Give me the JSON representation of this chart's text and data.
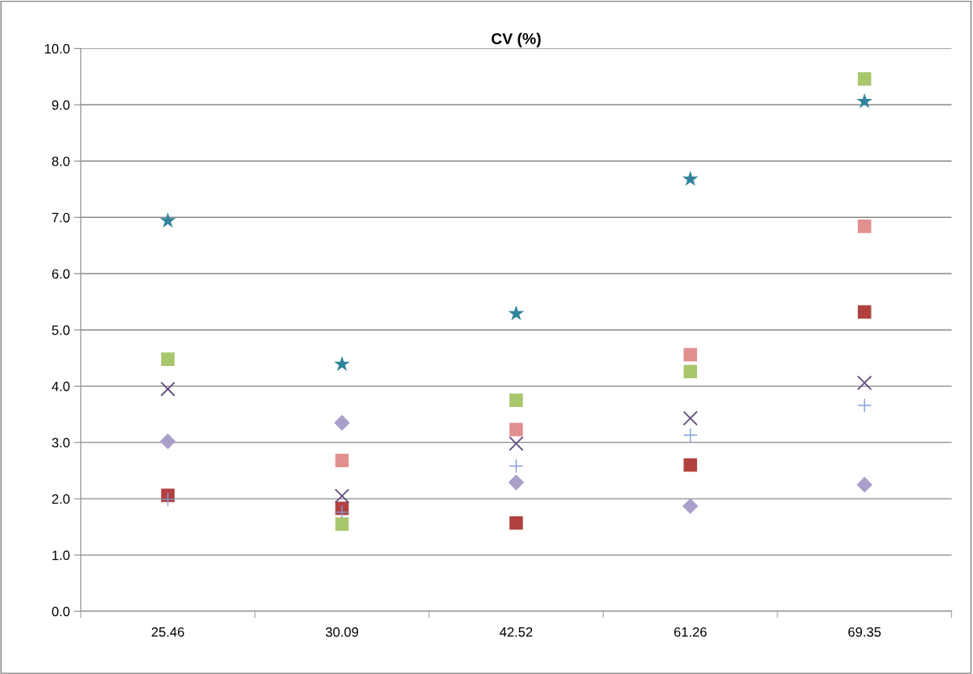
{
  "chart_data": {
    "type": "scatter",
    "title": "CV (%)",
    "categories": [
      "25.46",
      "30.09",
      "42.52",
      "61.26",
      "69.35"
    ],
    "series": [
      {
        "color": "#a99fc9",
        "marker": "diamond",
        "values": [
          3.02,
          3.35,
          2.29,
          1.87,
          2.25
        ]
      },
      {
        "color": "#b0413e",
        "marker": "square",
        "values": [
          2.06,
          1.83,
          1.57,
          2.6,
          5.32
        ]
      },
      {
        "color": "#a8c66c",
        "marker": "square",
        "values": [
          4.48,
          1.55,
          3.75,
          4.26,
          9.46
        ]
      },
      {
        "color": "#604a7b",
        "marker": "cross",
        "values": [
          3.95,
          2.05,
          2.98,
          3.43,
          4.06
        ]
      },
      {
        "color": "#31849b",
        "marker": "star",
        "values": [
          6.94,
          4.39,
          5.29,
          7.68,
          9.06
        ]
      },
      {
        "color": "#e0908e",
        "marker": "square",
        "values": [
          null,
          2.68,
          3.23,
          4.56,
          6.84
        ]
      },
      {
        "color": "#7f9fd8",
        "marker": "plus",
        "values": [
          1.99,
          1.76,
          2.58,
          3.13,
          3.66
        ]
      }
    ],
    "ylim": [
      0,
      10
    ],
    "yticks": [
      {
        "value": 0,
        "label": "0.0"
      },
      {
        "value": 1,
        "label": "1.0"
      },
      {
        "value": 2,
        "label": "2.0"
      },
      {
        "value": 3,
        "label": "3.0"
      },
      {
        "value": 4,
        "label": "4.0"
      },
      {
        "value": 5,
        "label": "5.0"
      },
      {
        "value": 6,
        "label": "6.0"
      },
      {
        "value": 7,
        "label": "7.0"
      },
      {
        "value": 8,
        "label": "8.0"
      },
      {
        "value": 9,
        "label": "9.0"
      },
      {
        "value": 10,
        "label": "10.0"
      }
    ],
    "grid": "y"
  }
}
